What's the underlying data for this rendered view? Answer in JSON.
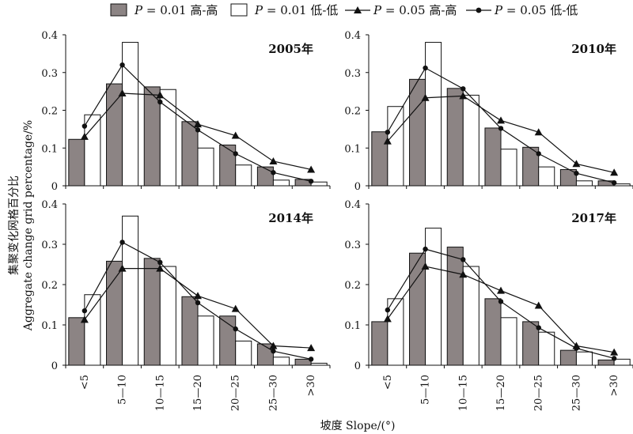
{
  "legend": [
    {
      "label": "P = 0.01 高-高",
      "italic_prefix": "P",
      "rest": " = 0.01 高-高",
      "kind": "bar",
      "color": "#8c8484"
    },
    {
      "label": "P = 0.01 低-低",
      "italic_prefix": "P",
      "rest": " = 0.01 低-低",
      "kind": "bar",
      "color": "#ffffff"
    },
    {
      "label": "P = 0.05 高-高",
      "italic_prefix": "P",
      "rest": " = 0.05 高-高",
      "kind": "line",
      "marker": "triangle"
    },
    {
      "label": "P = 0.05 低-低",
      "italic_prefix": "P",
      "rest": " = 0.05 低-低",
      "kind": "line",
      "marker": "circle"
    }
  ],
  "y_axis_title": {
    "zh": "集聚变化网格百分比",
    "en": "Aggregate change grid percentage/%"
  },
  "x_axis_title": "坡度 Slope/(°)",
  "chart_data": [
    {
      "type": "bar",
      "title": "2005年",
      "categories": [
        "<5",
        "5—10",
        "10—15",
        "15—20",
        "20—25",
        "25—30",
        ">30"
      ],
      "ylim": [
        0,
        0.4
      ],
      "yticks": [
        "0",
        "0.1",
        "0.2",
        "0.3",
        "0.4"
      ],
      "series": [
        {
          "name": "P = 0.01 高-高",
          "kind": "bar",
          "values": [
            0.123,
            0.27,
            0.262,
            0.17,
            0.108,
            0.05,
            0.017
          ]
        },
        {
          "name": "P = 0.01 低-低",
          "kind": "bar",
          "values": [
            0.188,
            0.38,
            0.255,
            0.1,
            0.055,
            0.015,
            0.01
          ]
        },
        {
          "name": "P = 0.05 高-高",
          "kind": "line",
          "values": [
            0.13,
            0.245,
            0.24,
            0.163,
            0.133,
            0.065,
            0.043
          ]
        },
        {
          "name": "P = 0.05 低-低",
          "kind": "line",
          "values": [
            0.158,
            0.32,
            0.222,
            0.148,
            0.085,
            0.035,
            0.012
          ]
        }
      ]
    },
    {
      "type": "bar",
      "title": "2010年",
      "categories": [
        "<5",
        "5—10",
        "10—15",
        "15—20",
        "20—25",
        "25—30",
        ">30"
      ],
      "ylim": [
        0,
        0.4
      ],
      "yticks": [
        "0",
        "0.1",
        "0.2",
        "0.3",
        "0.4"
      ],
      "series": [
        {
          "name": "P = 0.01 高-高",
          "kind": "bar",
          "values": [
            0.143,
            0.282,
            0.258,
            0.153,
            0.102,
            0.043,
            0.013
          ]
        },
        {
          "name": "P = 0.01 低-低",
          "kind": "bar",
          "values": [
            0.21,
            0.38,
            0.24,
            0.097,
            0.05,
            0.013,
            0.005
          ]
        },
        {
          "name": "P = 0.05 高-高",
          "kind": "line",
          "values": [
            0.118,
            0.233,
            0.238,
            0.173,
            0.142,
            0.058,
            0.035
          ]
        },
        {
          "name": "P = 0.05 低-低",
          "kind": "line",
          "values": [
            0.142,
            0.312,
            0.257,
            0.152,
            0.085,
            0.033,
            0.008
          ]
        }
      ]
    },
    {
      "type": "bar",
      "title": "2014年",
      "categories": [
        "<5",
        "5—10",
        "10—15",
        "15—20",
        "20—25",
        "25—30",
        ">30"
      ],
      "ylim": [
        0,
        0.4
      ],
      "yticks": [
        "0",
        "0.1",
        "0.2",
        "0.3",
        "0.4"
      ],
      "series": [
        {
          "name": "P = 0.01 高-高",
          "kind": "bar",
          "values": [
            0.118,
            0.258,
            0.265,
            0.17,
            0.122,
            0.053,
            0.015
          ]
        },
        {
          "name": "P = 0.01 低-低",
          "kind": "bar",
          "values": [
            0.175,
            0.37,
            0.245,
            0.122,
            0.06,
            0.02,
            0.005
          ]
        },
        {
          "name": "P = 0.05 高-高",
          "kind": "line",
          "values": [
            0.113,
            0.24,
            0.24,
            0.172,
            0.14,
            0.048,
            0.043
          ]
        },
        {
          "name": "P = 0.05 低-低",
          "kind": "line",
          "values": [
            0.135,
            0.305,
            0.255,
            0.155,
            0.09,
            0.035,
            0.015
          ]
        }
      ]
    },
    {
      "type": "bar",
      "title": "2017年",
      "categories": [
        "<5",
        "5—10",
        "10—15",
        "15—20",
        "20—25",
        "25—30",
        ">30"
      ],
      "ylim": [
        0,
        0.4
      ],
      "yticks": [
        "0",
        "0.1",
        "0.2",
        "0.3",
        "0.4"
      ],
      "series": [
        {
          "name": "P = 0.01 高-高",
          "kind": "bar",
          "values": [
            0.108,
            0.278,
            0.293,
            0.165,
            0.108,
            0.037,
            0.013
          ]
        },
        {
          "name": "P = 0.01 低-低",
          "kind": "bar",
          "values": [
            0.165,
            0.34,
            0.245,
            0.118,
            0.082,
            0.033,
            0.015
          ]
        },
        {
          "name": "P = 0.05 高-高",
          "kind": "line",
          "values": [
            0.115,
            0.245,
            0.225,
            0.185,
            0.148,
            0.048,
            0.032
          ]
        },
        {
          "name": "P = 0.05 低-低",
          "kind": "line",
          "values": [
            0.137,
            0.288,
            0.262,
            0.158,
            0.093,
            0.042,
            0.017
          ]
        }
      ]
    }
  ]
}
